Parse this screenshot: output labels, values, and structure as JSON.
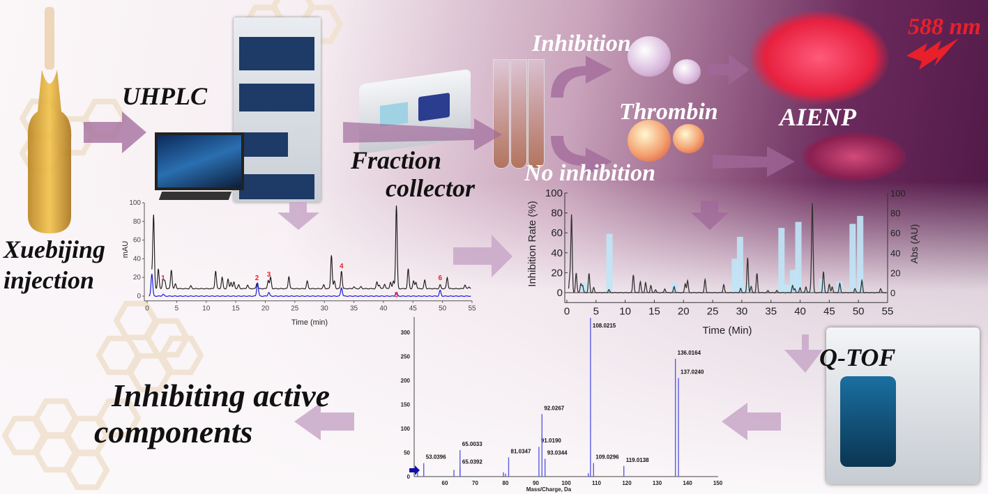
{
  "labels": {
    "xuebijing": "Xuebijing",
    "injection": "injection",
    "uhplc": "UHPLC",
    "fraction": "Fraction",
    "collector": "collector",
    "inhibition": "Inhibition",
    "thrombin": "Thrombin",
    "no_inhibition": "No inhibition",
    "aienp": "AIENP",
    "wavelength": "588 nm",
    "qtof": "Q-TOF",
    "result_line1": "Inhibiting active",
    "result_line2": "components"
  },
  "colors": {
    "accent_arrow": "#a0689a",
    "trace_black": "#111111",
    "trace_blue": "#1a1adb",
    "bar_blue": "#bfe6f7",
    "red": "#e8202a",
    "ms_blue": "#5a5ae6"
  },
  "chart_data": [
    {
      "type": "line",
      "xlabel": "Time (min)",
      "ylabel": "mAU",
      "xlim": [
        0,
        55
      ],
      "ylim": [
        -5,
        100
      ],
      "xticks": [
        0,
        5,
        10,
        15,
        20,
        25,
        30,
        35,
        40,
        45,
        50,
        55
      ],
      "yticks": [
        0,
        20,
        40,
        60,
        80,
        100
      ],
      "black_peaks": [
        [
          0.8,
          16
        ],
        [
          1.1,
          78
        ],
        [
          1.9,
          21
        ],
        [
          2.7,
          10
        ],
        [
          3,
          8
        ],
        [
          4.1,
          20
        ],
        [
          4.8,
          5
        ],
        [
          7.4,
          3
        ],
        [
          11.6,
          19
        ],
        [
          12.7,
          12
        ],
        [
          13.7,
          10
        ],
        [
          14.2,
          7
        ],
        [
          14.7,
          7
        ],
        [
          15.5,
          4
        ],
        [
          17,
          4
        ],
        [
          18.6,
          6
        ],
        [
          20.5,
          9
        ],
        [
          20.9,
          12
        ],
        [
          24,
          13
        ],
        [
          27.1,
          8
        ],
        [
          29.9,
          4
        ],
        [
          31.2,
          36
        ],
        [
          31.7,
          8
        ],
        [
          32.9,
          19
        ],
        [
          35,
          2
        ],
        [
          36.2,
          2
        ],
        [
          38.9,
          7
        ],
        [
          39.3,
          4
        ],
        [
          40.2,
          5
        ],
        [
          41.2,
          7
        ],
        [
          41.7,
          8
        ],
        [
          42.2,
          89
        ],
        [
          44.2,
          21
        ],
        [
          45.1,
          8
        ],
        [
          45.5,
          7
        ],
        [
          47,
          9
        ],
        [
          49.6,
          4
        ],
        [
          50.8,
          12
        ],
        [
          53.8,
          4
        ],
        [
          54.5,
          2
        ]
      ],
      "black_baseline": 8,
      "blue_peaks": [
        [
          0.8,
          24
        ],
        [
          2.7,
          2
        ],
        [
          18.7,
          14
        ],
        [
          20.6,
          4
        ],
        [
          32.9,
          9
        ],
        [
          42.2,
          4
        ],
        [
          49.6,
          6
        ]
      ],
      "peak_labels": [
        {
          "text": "1",
          "x": 2.7,
          "y": 17
        },
        {
          "text": "2",
          "x": 18.6,
          "y": 17
        },
        {
          "text": "3",
          "x": 20.6,
          "y": 21
        },
        {
          "text": "4",
          "x": 32.9,
          "y": 30
        },
        {
          "text": "5",
          "x": 42.2,
          "y": -1
        },
        {
          "text": "6",
          "x": 49.6,
          "y": 17
        }
      ]
    },
    {
      "type": "bar+line",
      "xlabel": "Time (Min)",
      "ylabel": "Inhibition Rate (%)",
      "y2label": "Abs (AU)",
      "xlim": [
        0,
        55
      ],
      "ylim": [
        -10,
        100
      ],
      "y2lim": [
        -10,
        100
      ],
      "xticks": [
        0,
        5,
        10,
        15,
        20,
        25,
        30,
        35,
        40,
        45,
        50,
        55
      ],
      "yticks": [
        0,
        20,
        40,
        60,
        80,
        100
      ],
      "y2ticks": [
        0,
        20,
        40,
        60,
        80,
        100
      ],
      "bars": [
        [
          3,
          10
        ],
        [
          7.3,
          59
        ],
        [
          18.5,
          10
        ],
        [
          28.8,
          34
        ],
        [
          29.7,
          56
        ],
        [
          31,
          8
        ],
        [
          36.8,
          65
        ],
        [
          37.7,
          8
        ],
        [
          38.8,
          23
        ],
        [
          39.7,
          71
        ],
        [
          41.5,
          3
        ],
        [
          43.8,
          14
        ],
        [
          46.8,
          11
        ],
        [
          49,
          69
        ],
        [
          50.3,
          77
        ]
      ],
      "trace_peaks": [
        [
          0.5,
          15
        ],
        [
          0.8,
          78
        ],
        [
          1.6,
          20
        ],
        [
          2.4,
          9
        ],
        [
          2.7,
          7
        ],
        [
          3.8,
          19
        ],
        [
          4.6,
          5
        ],
        [
          7.2,
          3
        ],
        [
          11.4,
          18
        ],
        [
          12.6,
          11
        ],
        [
          13.5,
          10
        ],
        [
          14.4,
          7
        ],
        [
          15.2,
          3
        ],
        [
          16.8,
          4
        ],
        [
          18.4,
          6
        ],
        [
          20.3,
          9
        ],
        [
          20.7,
          12
        ],
        [
          23.7,
          13
        ],
        [
          26.9,
          8
        ],
        [
          29.8,
          4
        ],
        [
          31,
          35
        ],
        [
          31.6,
          6
        ],
        [
          32.6,
          19
        ],
        [
          34.5,
          2
        ],
        [
          36,
          2
        ],
        [
          38.7,
          7
        ],
        [
          39.1,
          4
        ],
        [
          40,
          5
        ],
        [
          41,
          6
        ],
        [
          41.9,
          8
        ],
        [
          42.1,
          88
        ],
        [
          44,
          21
        ],
        [
          45,
          8
        ],
        [
          45.5,
          6
        ],
        [
          46.8,
          9
        ],
        [
          49.4,
          4
        ],
        [
          50.6,
          12
        ],
        [
          53.8,
          4
        ]
      ]
    },
    {
      "type": "bar",
      "xlabel": "Mass/Charge, Da",
      "xlim": [
        50,
        155
      ],
      "ylim": [
        0,
        330
      ],
      "xticks": [
        60,
        70,
        80,
        90,
        100,
        110,
        120,
        130,
        140,
        150
      ],
      "yticks": [
        0,
        50,
        100,
        150,
        200,
        250,
        300
      ],
      "peaks": [
        {
          "mz": 51,
          "i": 10
        },
        {
          "mz": 53.0396,
          "i": 28,
          "label": "53.0396"
        },
        {
          "mz": 63,
          "i": 14
        },
        {
          "mz": 65.0033,
          "i": 55,
          "label": "65.0033"
        },
        {
          "mz": 65.0392,
          "i": 18,
          "label": "65.0392"
        },
        {
          "mz": 79.3,
          "i": 9
        },
        {
          "mz": 80,
          "i": 6
        },
        {
          "mz": 81.0347,
          "i": 40,
          "label": "81.0347"
        },
        {
          "mz": 91.019,
          "i": 62,
          "label": "91.0190"
        },
        {
          "mz": 92.0267,
          "i": 130,
          "label": "92.0267"
        },
        {
          "mz": 93.0344,
          "i": 37,
          "label": "93.0344"
        },
        {
          "mz": 107.3,
          "i": 7
        },
        {
          "mz": 108.0215,
          "i": 330,
          "label": "108.0215"
        },
        {
          "mz": 109.0296,
          "i": 28,
          "label": "109.0296"
        },
        {
          "mz": 119.0138,
          "i": 22,
          "label": "119.0138"
        },
        {
          "mz": 136.0164,
          "i": 245,
          "label": "136.0164"
        },
        {
          "mz": 137.024,
          "i": 205,
          "label": "137.0240"
        }
      ]
    }
  ]
}
